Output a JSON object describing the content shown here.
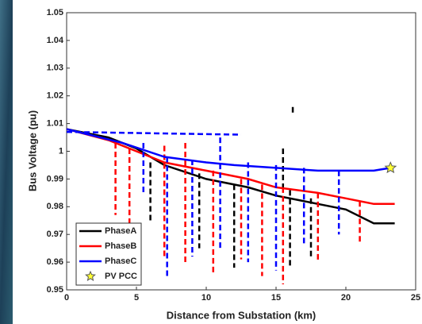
{
  "chart_data": {
    "type": "line",
    "xlabel": "Distance from Substation (km)",
    "ylabel": "Bus Voltage (pu)",
    "xlim": [
      0,
      25
    ],
    "xticks": [
      0,
      5,
      10,
      15,
      20,
      25
    ],
    "ylim": [
      0.95,
      1.05
    ],
    "yticks": [
      0.95,
      0.96,
      0.97,
      0.98,
      0.99,
      1,
      1.01,
      1.02,
      1.03,
      1.04,
      1.05
    ],
    "legend": "lower left",
    "series": [
      {
        "name": "PhaseA",
        "color": "#000000",
        "x": [
          0,
          3,
          5,
          7,
          10,
          13,
          15,
          18,
          20,
          22,
          23.5
        ],
        "values": [
          1.008,
          1.005,
          1.001,
          0.995,
          0.99,
          0.987,
          0.984,
          0.981,
          0.979,
          0.974,
          0.974
        ],
        "lateral_x": [
          6,
          6,
          null,
          9.5,
          9.5,
          null,
          12,
          12,
          null,
          15.5,
          15.5,
          null,
          16,
          16,
          null,
          17.5,
          17.5,
          null,
          16.2,
          16.2
        ],
        "lateral_values": [
          0.996,
          0.975,
          null,
          0.992,
          0.965,
          null,
          0.988,
          0.958,
          null,
          1.001,
          0.986,
          null,
          0.986,
          0.958,
          null,
          0.983,
          0.962,
          null,
          1.016,
          1.013
        ]
      },
      {
        "name": "PhaseB",
        "color": "#ff0000",
        "x": [
          0,
          3,
          5,
          7,
          10,
          13,
          15,
          18,
          20,
          22,
          23.5
        ],
        "values": [
          1.008,
          1.004,
          1.0,
          0.996,
          0.993,
          0.99,
          0.987,
          0.985,
          0.983,
          0.981,
          0.981
        ],
        "lateral_x": [
          3.5,
          3.5,
          null,
          4.5,
          4.5,
          null,
          7,
          7,
          null,
          8.5,
          8.5,
          null,
          10.5,
          10.5,
          null,
          12.5,
          12.5,
          null,
          14,
          14,
          null,
          15.5,
          15.5,
          null,
          18,
          18,
          null,
          21,
          21
        ],
        "lateral_values": [
          1.003,
          0.977,
          null,
          1.001,
          0.962,
          null,
          1.002,
          0.962,
          null,
          1.003,
          0.96,
          null,
          0.993,
          0.956,
          null,
          0.99,
          0.961,
          null,
          0.988,
          0.955,
          null,
          0.987,
          0.952,
          null,
          0.985,
          0.96,
          null,
          0.982,
          0.967
        ]
      },
      {
        "name": "PhaseC",
        "color": "#0000ff",
        "x": [
          0,
          4,
          7,
          10,
          12,
          15,
          18,
          20,
          22,
          23.2
        ],
        "values": [
          1.008,
          1.003,
          0.998,
          0.996,
          0.995,
          0.994,
          0.993,
          0.993,
          0.993,
          0.994
        ],
        "lateral_x": [
          0,
          12.5,
          null,
          5.5,
          5.5,
          null,
          7.2,
          7.2,
          null,
          9,
          9,
          null,
          11,
          11,
          null,
          13,
          13,
          null,
          15,
          15,
          null,
          17,
          17,
          null,
          19.5,
          19.5
        ],
        "lateral_values": [
          1.007,
          1.006,
          null,
          1.003,
          0.985,
          null,
          0.998,
          0.954,
          null,
          0.997,
          0.962,
          null,
          1.005,
          0.965,
          null,
          0.996,
          0.96,
          null,
          0.995,
          0.957,
          null,
          0.994,
          0.966,
          null,
          0.993,
          0.97
        ]
      }
    ],
    "markers": [
      {
        "name": "PV PCC",
        "color": "#ffff33",
        "x": 23.2,
        "value": 0.994
      }
    ]
  }
}
